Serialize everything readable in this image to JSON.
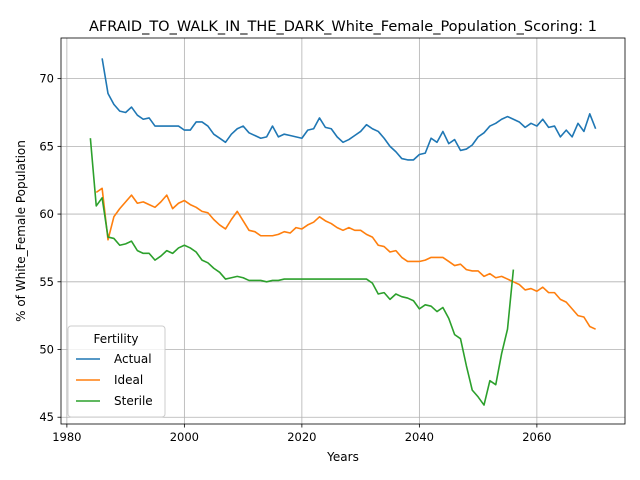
{
  "chart_data": {
    "type": "line",
    "title": "AFRAID_TO_WALK_IN_THE_DARK_White_Female_Population_Scoring: 1",
    "xlabel": "Years",
    "ylabel": "% of White_Female Population",
    "xlim": [
      1979,
      2075
    ],
    "ylim": [
      44.5,
      73.0
    ],
    "xticks": [
      1980,
      2000,
      2020,
      2040,
      2060
    ],
    "yticks": [
      45,
      50,
      55,
      60,
      65,
      70
    ],
    "grid": true,
    "legend": {
      "title": "Fertility",
      "position": "lower-left"
    },
    "series": [
      {
        "name": "Actual",
        "color": "#1f77b4",
        "x": [
          1986,
          1987,
          1988,
          1989,
          1990,
          1991,
          1992,
          1993,
          1994,
          1995,
          1996,
          1997,
          1998,
          1999,
          2000,
          2001,
          2002,
          2003,
          2004,
          2005,
          2006,
          2007,
          2008,
          2009,
          2010,
          2011,
          2012,
          2013,
          2014,
          2015,
          2016,
          2017,
          2018,
          2019,
          2020,
          2021,
          2022,
          2023,
          2024,
          2025,
          2026,
          2027,
          2028,
          2029,
          2030,
          2031,
          2032,
          2033,
          2034,
          2035,
          2036,
          2037,
          2038,
          2039,
          2040,
          2041,
          2042,
          2043,
          2044,
          2045,
          2046,
          2047,
          2048,
          2049,
          2050,
          2051,
          2052,
          2053,
          2054,
          2055,
          2056,
          2057,
          2058,
          2059,
          2060,
          2061,
          2062,
          2063,
          2064,
          2065,
          2066,
          2067,
          2068,
          2069,
          2070
        ],
        "y": [
          71.5,
          68.9,
          68.1,
          67.6,
          67.5,
          67.9,
          67.3,
          67.0,
          67.1,
          66.5,
          66.5,
          66.5,
          66.5,
          66.5,
          66.2,
          66.2,
          66.8,
          66.8,
          66.5,
          65.9,
          65.6,
          65.3,
          65.9,
          66.3,
          66.5,
          66.0,
          65.8,
          65.6,
          65.7,
          66.5,
          65.7,
          65.9,
          65.8,
          65.7,
          65.6,
          66.2,
          66.3,
          67.1,
          66.4,
          66.3,
          65.7,
          65.3,
          65.5,
          65.8,
          66.1,
          66.6,
          66.3,
          66.1,
          65.6,
          65.0,
          64.6,
          64.1,
          64.0,
          64.0,
          64.4,
          64.5,
          65.6,
          65.3,
          66.1,
          65.2,
          65.5,
          64.7,
          64.8,
          65.1,
          65.7,
          66.0,
          66.5,
          66.7,
          67.0,
          67.2,
          67.0,
          66.8,
          66.4,
          66.7,
          66.5,
          67.0,
          66.4,
          66.5,
          65.7,
          66.2,
          65.7,
          66.7,
          66.1,
          67.4,
          66.3
        ]
      },
      {
        "name": "Ideal",
        "color": "#ff7f0e",
        "x": [
          1985,
          1986,
          1987,
          1988,
          1989,
          1990,
          1991,
          1992,
          1993,
          1994,
          1995,
          1996,
          1997,
          1998,
          1999,
          2000,
          2001,
          2002,
          2003,
          2004,
          2005,
          2006,
          2007,
          2008,
          2009,
          2010,
          2011,
          2012,
          2013,
          2014,
          2015,
          2016,
          2017,
          2018,
          2019,
          2020,
          2021,
          2022,
          2023,
          2024,
          2025,
          2026,
          2027,
          2028,
          2029,
          2030,
          2031,
          2032,
          2033,
          2034,
          2035,
          2036,
          2037,
          2038,
          2039,
          2040,
          2041,
          2042,
          2043,
          2044,
          2045,
          2046,
          2047,
          2048,
          2049,
          2050,
          2051,
          2052,
          2053,
          2054,
          2055,
          2056,
          2057,
          2058,
          2059,
          2060,
          2061,
          2062,
          2063,
          2064,
          2065,
          2066,
          2067,
          2068,
          2069,
          2070
        ],
        "y": [
          61.6,
          61.9,
          58.1,
          59.8,
          60.4,
          60.9,
          61.4,
          60.8,
          60.9,
          60.7,
          60.5,
          60.9,
          61.4,
          60.4,
          60.8,
          61.0,
          60.7,
          60.5,
          60.2,
          60.1,
          59.6,
          59.2,
          58.9,
          59.6,
          60.2,
          59.5,
          58.8,
          58.7,
          58.4,
          58.4,
          58.4,
          58.5,
          58.7,
          58.6,
          59.0,
          58.9,
          59.2,
          59.4,
          59.8,
          59.5,
          59.3,
          59.0,
          58.8,
          59.0,
          58.8,
          58.8,
          58.5,
          58.3,
          57.7,
          57.6,
          57.2,
          57.3,
          56.8,
          56.5,
          56.5,
          56.5,
          56.6,
          56.8,
          56.8,
          56.8,
          56.5,
          56.2,
          56.3,
          55.9,
          55.8,
          55.8,
          55.4,
          55.6,
          55.3,
          55.4,
          55.2,
          55.0,
          54.8,
          54.4,
          54.5,
          54.3,
          54.6,
          54.2,
          54.2,
          53.7,
          53.5,
          53.0,
          52.5,
          52.4,
          51.7,
          51.5
        ]
      },
      {
        "name": "Sterile",
        "color": "#2ca02c",
        "x": [
          1984,
          1985,
          1986,
          1987,
          1988,
          1989,
          1990,
          1991,
          1992,
          1993,
          1994,
          1995,
          1996,
          1997,
          1998,
          1999,
          2000,
          2001,
          2002,
          2003,
          2004,
          2005,
          2006,
          2007,
          2008,
          2009,
          2010,
          2011,
          2012,
          2013,
          2014,
          2015,
          2016,
          2017,
          2018,
          2019,
          2020,
          2021,
          2022,
          2023,
          2024,
          2025,
          2026,
          2027,
          2028,
          2029,
          2030,
          2031,
          2032,
          2033,
          2034,
          2035,
          2036,
          2037,
          2038,
          2039,
          2040,
          2041,
          2042,
          2043,
          2044,
          2045,
          2046,
          2047,
          2048,
          2049,
          2050,
          2051,
          2052,
          2053,
          2054,
          2055,
          2056
        ],
        "y": [
          65.6,
          60.6,
          61.2,
          58.3,
          58.2,
          57.7,
          57.8,
          58.0,
          57.3,
          57.1,
          57.1,
          56.6,
          56.9,
          57.3,
          57.1,
          57.5,
          57.7,
          57.5,
          57.2,
          56.6,
          56.4,
          56.0,
          55.7,
          55.2,
          55.3,
          55.4,
          55.3,
          55.1,
          55.1,
          55.1,
          55.0,
          55.1,
          55.1,
          55.2,
          55.2,
          55.2,
          55.2,
          55.2,
          55.2,
          55.2,
          55.2,
          55.2,
          55.2,
          55.2,
          55.2,
          55.2,
          55.2,
          55.2,
          54.9,
          54.1,
          54.2,
          53.7,
          54.1,
          53.9,
          53.8,
          53.6,
          53.0,
          53.3,
          53.2,
          52.8,
          53.1,
          52.3,
          51.1,
          50.8,
          48.8,
          47.0,
          46.5,
          45.9,
          47.7,
          47.4,
          49.7,
          51.5,
          55.9
        ]
      }
    ]
  }
}
